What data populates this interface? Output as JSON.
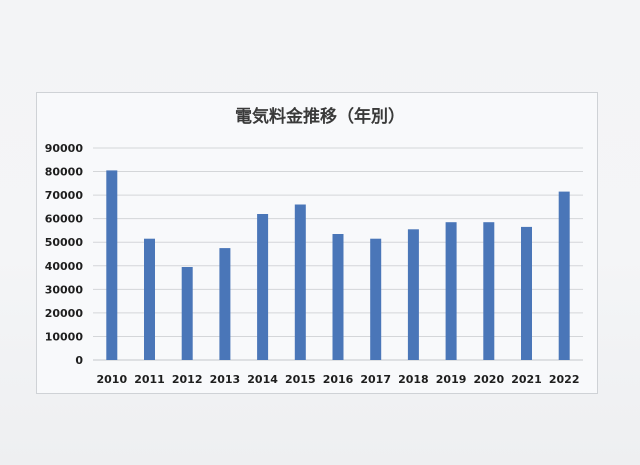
{
  "chart_data": {
    "type": "bar",
    "title": "電気料金推移（年別）",
    "xlabel": "",
    "ylabel": "",
    "categories": [
      "2010",
      "2011",
      "2012",
      "2013",
      "2014",
      "2015",
      "2016",
      "2017",
      "2018",
      "2019",
      "2020",
      "2021",
      "2022"
    ],
    "values": [
      80500,
      51500,
      39500,
      47500,
      62000,
      66000,
      53500,
      51500,
      55500,
      58500,
      58500,
      56500,
      71500
    ],
    "ylim": [
      0,
      90000
    ],
    "yticks": [
      "0",
      "10000",
      "20000",
      "30000",
      "40000",
      "50000",
      "60000",
      "70000",
      "80000",
      "90000"
    ],
    "grid": true,
    "legend": "none",
    "bar_color": "#4a76b8",
    "grid_color": "#d4d6d9"
  }
}
